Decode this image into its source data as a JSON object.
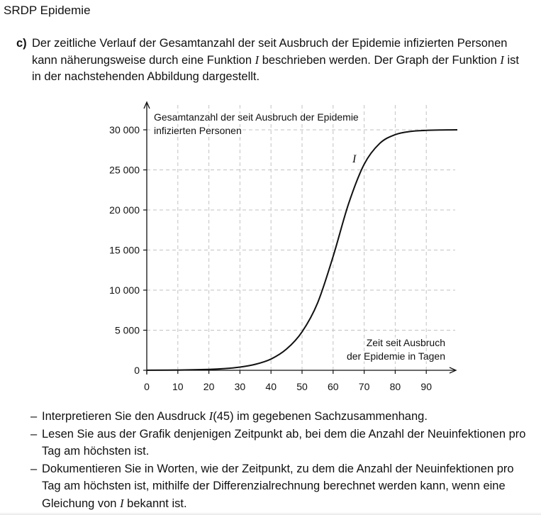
{
  "header": {
    "title": "SRDP Epidemie"
  },
  "task": {
    "label": "c)",
    "intro": [
      "Der zeitliche Verlauf der Gesamtanzahl der seit Ausbruch der Epidemie infizierten Personen kann näherungsweise durch eine Funktion ",
      "I",
      " beschrieben werden. Der Graph der Funktion ",
      "I",
      " ist in der nachstehenden Abbildung dargestellt."
    ]
  },
  "chart_data": {
    "type": "line",
    "ylabel_lines": [
      "Gesamtanzahl der seit Ausbruch der Epidemie",
      "infizierten Personen"
    ],
    "xlabel_lines": [
      "Zeit seit Ausbruch",
      "der Epidemie in Tagen"
    ],
    "curve_label": "I",
    "xlim": [
      0,
      100
    ],
    "ylim": [
      0,
      31000
    ],
    "x_ticks": [
      0,
      10,
      20,
      30,
      40,
      50,
      60,
      70,
      80,
      90
    ],
    "x_tick_labels": [
      "0",
      "10",
      "20",
      "30",
      "40",
      "50",
      "60",
      "70",
      "80",
      "90"
    ],
    "y_ticks": [
      0,
      5000,
      10000,
      15000,
      20000,
      25000,
      30000
    ],
    "y_tick_labels": [
      "0",
      "5 000",
      "10 000",
      "15 000",
      "20 000",
      "25 000",
      "30 000"
    ],
    "grid": true,
    "series": [
      {
        "x": [
          0,
          10,
          20,
          25,
          30,
          35,
          40,
          45,
          50,
          55,
          60,
          65,
          70,
          75,
          80,
          85,
          90,
          95,
          100
        ],
        "y": [
          8,
          30,
          108,
          210,
          400,
          750,
          1400,
          2650,
          4800,
          8400,
          14200,
          20800,
          25700,
          28300,
          29400,
          29800,
          29930,
          29980,
          30000
        ]
      }
    ]
  },
  "bullets": [
    [
      "Interpretieren Sie den Ausdruck ",
      "I",
      "(45) im gegebenen Sachzusammenhang."
    ],
    [
      "Lesen Sie aus der Grafik denjenigen Zeitpunkt ab, bei dem die Anzahl der Neuinfektionen pro Tag am höchsten ist."
    ],
    [
      "Dokumentieren Sie in Worten, wie der Zeitpunkt, zu dem die Anzahl der Neuinfektionen pro Tag am höchsten ist, mithilfe der Differenzialrechnung berechnet werden kann, wenn eine Gleichung von ",
      "I",
      " bekannt ist."
    ]
  ]
}
